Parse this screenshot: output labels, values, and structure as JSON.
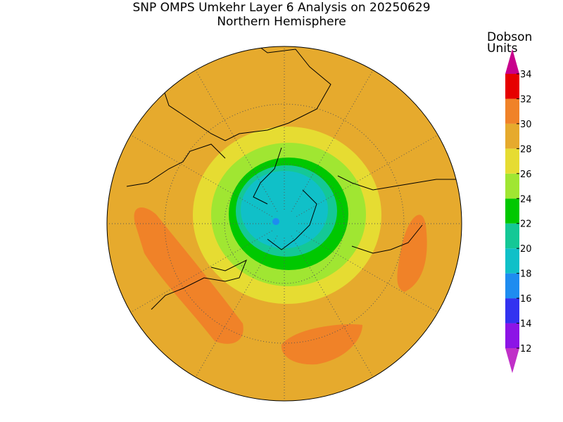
{
  "header": {
    "title": "SNP OMPS Umkehr Layer 6 Analysis on 20250629",
    "subtitle": "Northern Hemisphere"
  },
  "colorbar": {
    "label": [
      "Dobson",
      "Units"
    ],
    "ticks": [
      12,
      14,
      16,
      18,
      20,
      22,
      24,
      26,
      28,
      30,
      32,
      34
    ],
    "colors": [
      "#c030c8",
      "#8c14e6",
      "#3232f0",
      "#1e8cf0",
      "#10c0c8",
      "#14c896",
      "#00c800",
      "#a0e632",
      "#e6dc32",
      "#e6aa2d",
      "#f08228",
      "#e60000",
      "#c8008c"
    ]
  }
}
